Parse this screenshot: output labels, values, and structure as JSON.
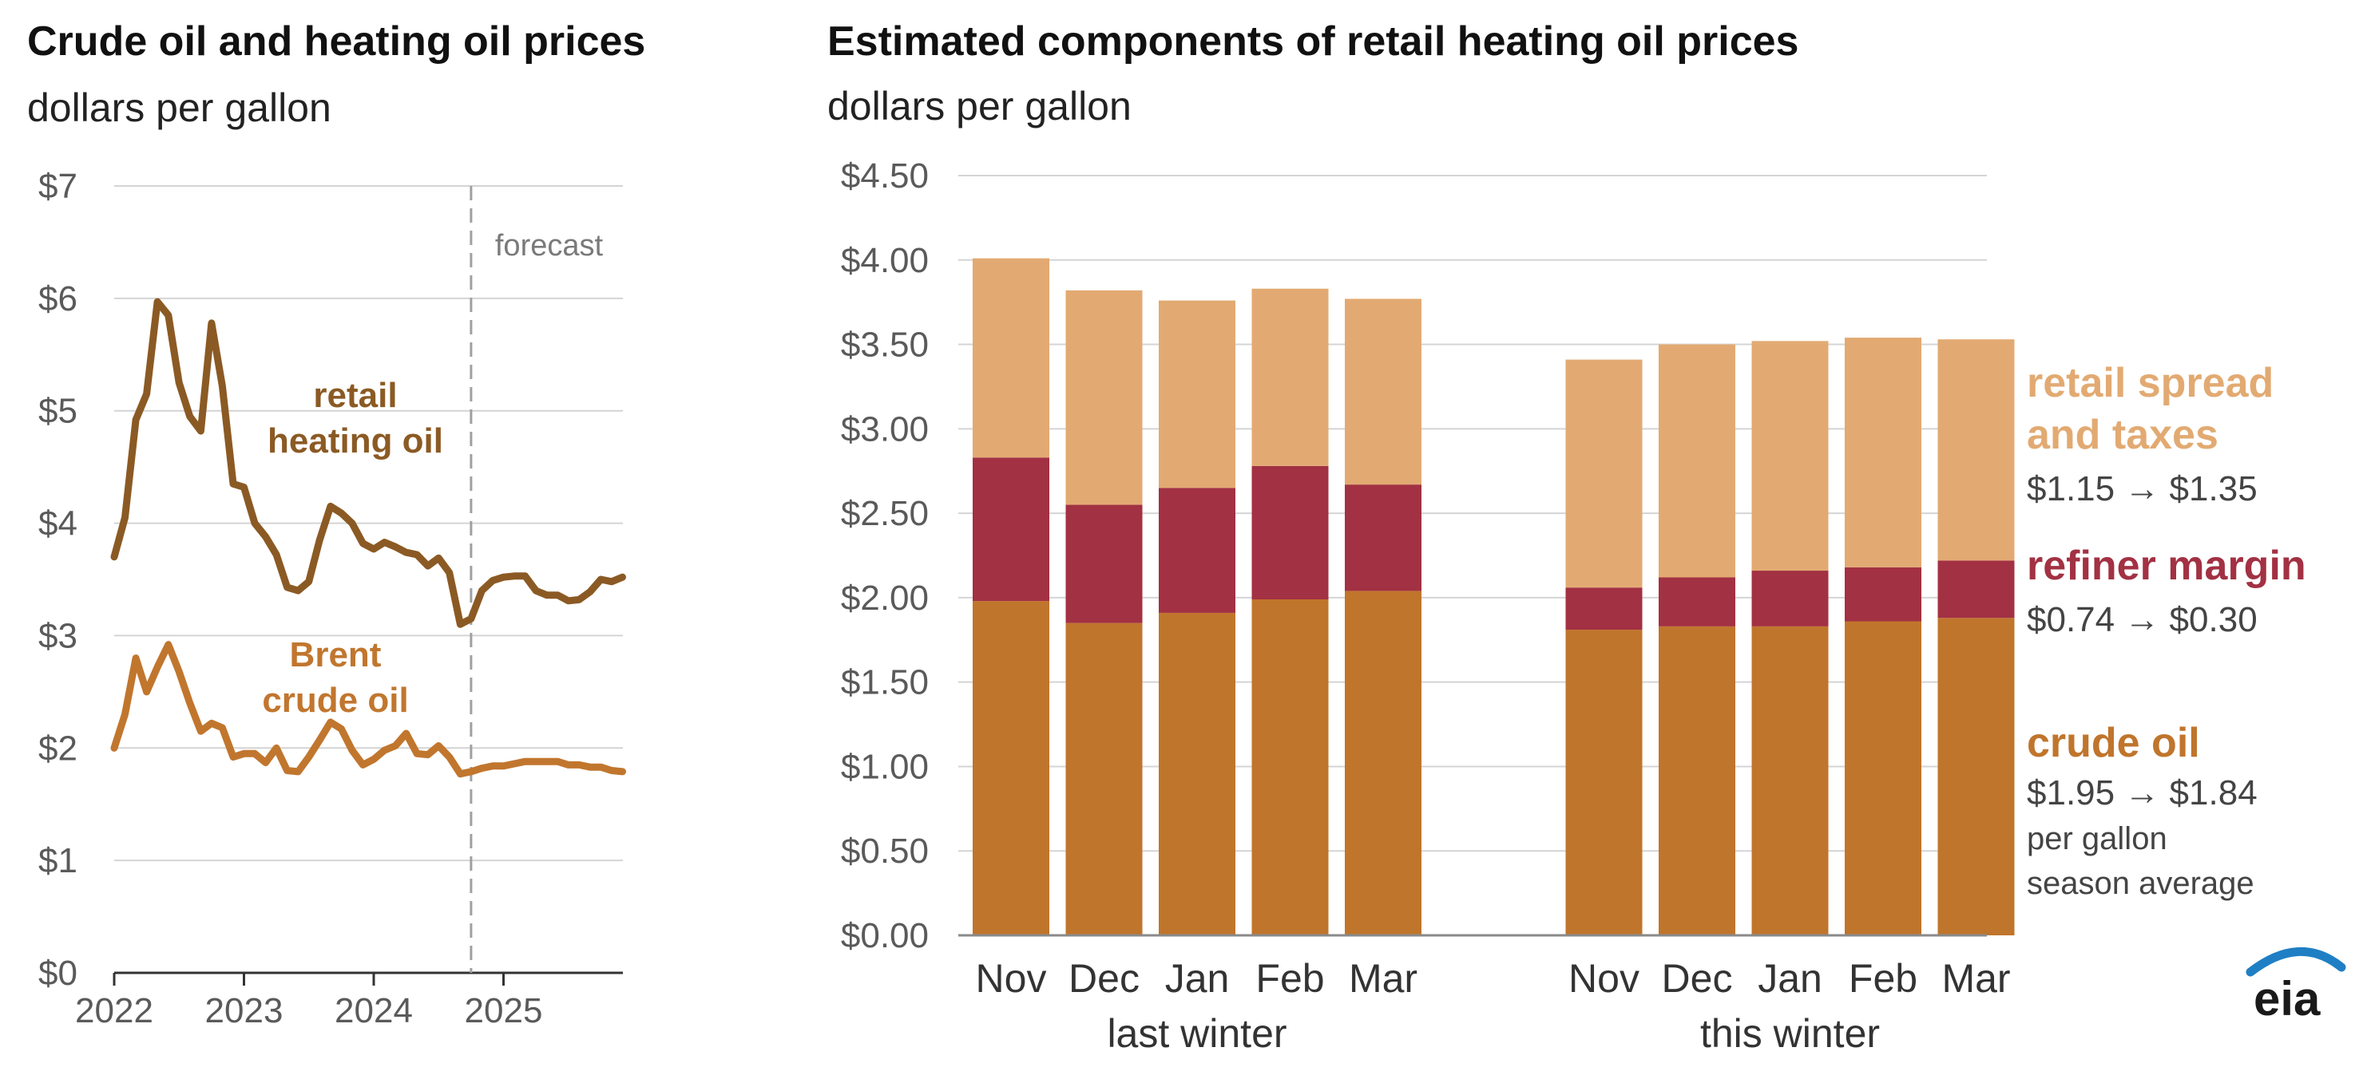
{
  "left_panel": {
    "title": "Crude oil and heating oil prices",
    "subtitle": "dollars per gallon",
    "forecast_label": "forecast"
  },
  "right_panel": {
    "title": "Estimated components of retail heating oil prices",
    "subtitle": "dollars per gallon"
  },
  "legend": {
    "retail_spread": {
      "line1": "retail spread",
      "line2": "and taxes",
      "change": "$1.15 → $1.35"
    },
    "refiner_margin": {
      "line1": "refiner margin",
      "change": "$0.74 → $0.30"
    },
    "crude_oil": {
      "line1": "crude oil",
      "change": "$1.95 → $1.84",
      "note1": "per gallon",
      "note2": "season average"
    }
  },
  "logo": {
    "text": "eia"
  },
  "colors": {
    "retail_line": "#8b5a24",
    "brent_line": "#c1762e",
    "crude": "#c0752c",
    "refiner": "#a23143",
    "retail_spread": "#e2aa72",
    "grid": "#d4d4d4",
    "axis": "#333333",
    "forecast_line": "#a0a0a0",
    "logo_arc": "#1f7fc4"
  },
  "chart_data": [
    {
      "type": "line",
      "title": "Crude oil and heating oil prices",
      "ylabel": "dollars per gallon",
      "ylim": [
        0,
        7
      ],
      "xlim": [
        2022.0,
        2025.92
      ],
      "y_ticks": [
        "$0",
        "$1",
        "$2",
        "$3",
        "$4",
        "$5",
        "$6",
        "$7"
      ],
      "x_ticks": [
        "2022",
        "2023",
        "2024",
        "2025"
      ],
      "forecast_start": 2024.75,
      "grid": true,
      "series": [
        {
          "name": "retail heating oil",
          "label_lines": [
            "retail",
            "heating oil"
          ],
          "x": [
            2022.0,
            2022.083,
            2022.167,
            2022.25,
            2022.333,
            2022.417,
            2022.5,
            2022.583,
            2022.667,
            2022.75,
            2022.833,
            2022.917,
            2023.0,
            2023.083,
            2023.167,
            2023.25,
            2023.333,
            2023.417,
            2023.5,
            2023.583,
            2023.667,
            2023.75,
            2023.833,
            2023.917,
            2024.0,
            2024.083,
            2024.167,
            2024.25,
            2024.333,
            2024.417,
            2024.5,
            2024.583,
            2024.667,
            2024.75,
            2024.833,
            2024.917,
            2025.0,
            2025.083,
            2025.167,
            2025.25,
            2025.333,
            2025.417,
            2025.5,
            2025.583,
            2025.667,
            2025.75,
            2025.833,
            2025.917
          ],
          "values": [
            3.7,
            4.05,
            4.92,
            5.15,
            5.97,
            5.85,
            5.25,
            4.95,
            4.82,
            5.78,
            5.22,
            4.35,
            4.32,
            4.0,
            3.88,
            3.72,
            3.43,
            3.4,
            3.48,
            3.85,
            4.15,
            4.09,
            4.0,
            3.82,
            3.77,
            3.83,
            3.79,
            3.74,
            3.72,
            3.62,
            3.69,
            3.56,
            3.1,
            3.15,
            3.4,
            3.49,
            3.52,
            3.53,
            3.53,
            3.4,
            3.36,
            3.36,
            3.31,
            3.32,
            3.39,
            3.5,
            3.48,
            3.52
          ]
        },
        {
          "name": "Brent crude oil",
          "label_lines": [
            "Brent",
            "crude oil"
          ],
          "x": [
            2022.0,
            2022.083,
            2022.167,
            2022.25,
            2022.333,
            2022.417,
            2022.5,
            2022.583,
            2022.667,
            2022.75,
            2022.833,
            2022.917,
            2023.0,
            2023.083,
            2023.167,
            2023.25,
            2023.333,
            2023.417,
            2023.5,
            2023.583,
            2023.667,
            2023.75,
            2023.833,
            2023.917,
            2024.0,
            2024.083,
            2024.167,
            2024.25,
            2024.333,
            2024.417,
            2024.5,
            2024.583,
            2024.667,
            2024.75,
            2024.833,
            2024.917,
            2025.0,
            2025.083,
            2025.167,
            2025.25,
            2025.333,
            2025.417,
            2025.5,
            2025.583,
            2025.667,
            2025.75,
            2025.833,
            2025.917
          ],
          "values": [
            2.0,
            2.3,
            2.8,
            2.5,
            2.72,
            2.92,
            2.68,
            2.4,
            2.15,
            2.22,
            2.18,
            1.92,
            1.95,
            1.95,
            1.87,
            2.0,
            1.8,
            1.79,
            1.92,
            2.07,
            2.23,
            2.17,
            1.98,
            1.85,
            1.9,
            1.98,
            2.02,
            2.13,
            1.95,
            1.94,
            2.02,
            1.92,
            1.77,
            1.79,
            1.82,
            1.84,
            1.84,
            1.86,
            1.88,
            1.88,
            1.88,
            1.88,
            1.85,
            1.85,
            1.83,
            1.83,
            1.8,
            1.79
          ]
        }
      ]
    },
    {
      "type": "bar",
      "stacked": true,
      "title": "Estimated components of retail heating oil prices",
      "ylabel": "dollars per gallon",
      "ylim": [
        0,
        4.5
      ],
      "y_ticks": [
        "$0.00",
        "$0.50",
        "$1.00",
        "$1.50",
        "$2.00",
        "$2.50",
        "$3.00",
        "$3.50",
        "$4.00",
        "$4.50"
      ],
      "categories": [
        "Nov",
        "Dec",
        "Jan",
        "Feb",
        "Mar",
        "Nov",
        "Dec",
        "Jan",
        "Feb",
        "Mar"
      ],
      "groups": [
        {
          "label": "last winter",
          "count": 5
        },
        {
          "label": "this winter",
          "count": 5
        }
      ],
      "grid": true,
      "series": [
        {
          "name": "crude oil",
          "values": [
            1.98,
            1.85,
            1.91,
            1.99,
            2.04,
            1.81,
            1.83,
            1.83,
            1.86,
            1.88
          ]
        },
        {
          "name": "refiner margin",
          "values": [
            0.85,
            0.7,
            0.74,
            0.79,
            0.63,
            0.25,
            0.29,
            0.33,
            0.32,
            0.34
          ]
        },
        {
          "name": "retail spread and taxes",
          "values": [
            1.18,
            1.27,
            1.11,
            1.05,
            1.1,
            1.35,
            1.38,
            1.36,
            1.36,
            1.31
          ]
        }
      ]
    }
  ]
}
